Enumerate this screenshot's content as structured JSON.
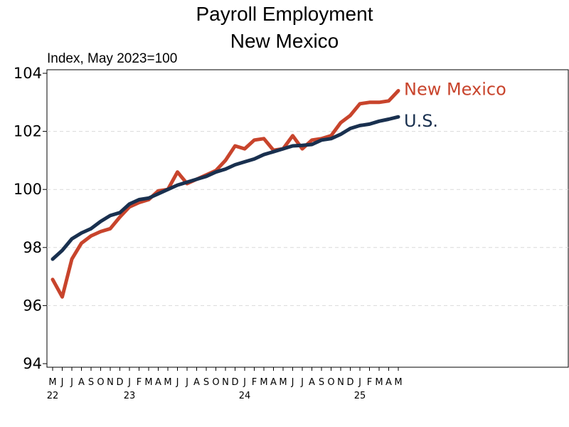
{
  "chart_data": {
    "type": "line",
    "title": "Payroll Employment",
    "subtitle": "New Mexico",
    "ylabel": "Index, May 2023=100",
    "ylim": [
      94,
      104
    ],
    "yticks": [
      94,
      96,
      98,
      100,
      102,
      104
    ],
    "x_month_labels": [
      "M",
      "J",
      "J",
      "A",
      "S",
      "O",
      "N",
      "D",
      "J",
      "F",
      "M",
      "A",
      "M",
      "J",
      "J",
      "A",
      "S",
      "O",
      "N",
      "D",
      "J",
      "F",
      "M",
      "A",
      "M",
      "J",
      "J",
      "A",
      "S",
      "O",
      "N",
      "D",
      "J",
      "F",
      "M",
      "A",
      "M"
    ],
    "x_year_labels": [
      {
        "index": 0,
        "label": "22"
      },
      {
        "index": 8,
        "label": "23"
      },
      {
        "index": 20,
        "label": "24"
      },
      {
        "index": 32,
        "label": "25"
      }
    ],
    "grid": true,
    "series": [
      {
        "name": "New Mexico",
        "color": "#c8442c",
        "values": [
          96.9,
          96.3,
          97.6,
          98.15,
          98.4,
          98.55,
          98.65,
          99.05,
          99.4,
          99.55,
          99.65,
          99.95,
          100.0,
          100.6,
          100.2,
          100.35,
          100.5,
          100.65,
          101.0,
          101.5,
          101.4,
          101.7,
          101.75,
          101.35,
          101.4,
          101.85,
          101.4,
          101.7,
          101.75,
          101.85,
          102.3,
          102.55,
          102.95,
          103.0,
          103.0,
          103.05,
          103.4
        ]
      },
      {
        "name": "U.S.",
        "color": "#19304f",
        "values": [
          97.6,
          97.9,
          98.3,
          98.5,
          98.65,
          98.9,
          99.1,
          99.2,
          99.5,
          99.65,
          99.7,
          99.85,
          100.0,
          100.15,
          100.25,
          100.35,
          100.45,
          100.6,
          100.7,
          100.85,
          100.95,
          101.05,
          101.2,
          101.3,
          101.4,
          101.5,
          101.52,
          101.55,
          101.7,
          101.75,
          101.9,
          102.1,
          102.2,
          102.25,
          102.35,
          102.42,
          102.5
        ]
      }
    ]
  }
}
